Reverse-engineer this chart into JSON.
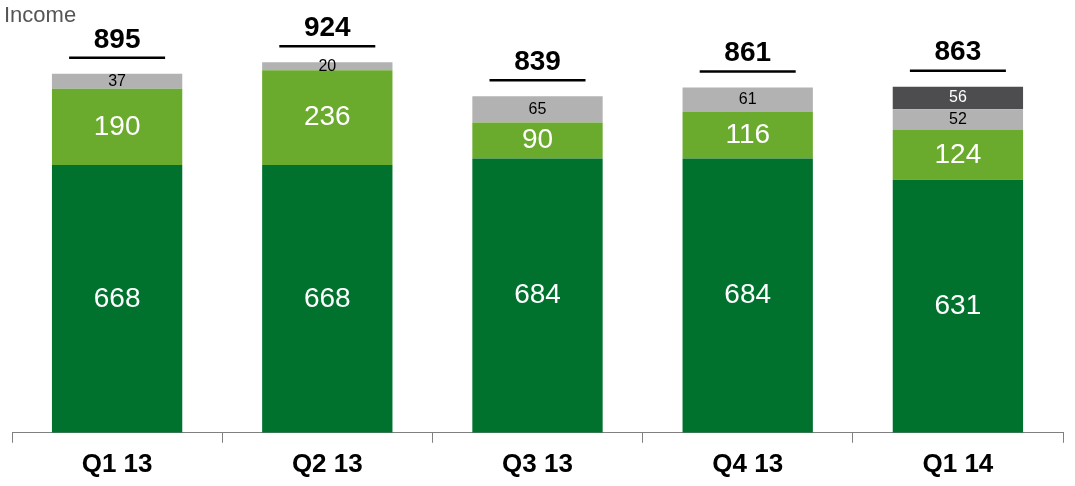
{
  "chart_data": {
    "type": "bar",
    "title": "Income",
    "stacked": true,
    "data_labels": true,
    "grid": false,
    "legend": false,
    "categories": [
      "Q1 13",
      "Q2 13",
      "Q3 13",
      "Q4 13",
      "Q1 14"
    ],
    "series": [
      {
        "color": "#00722e",
        "values": [
          668,
          668,
          684,
          684,
          631
        ]
      },
      {
        "color": "#6aab2e",
        "values": [
          190,
          236,
          90,
          116,
          124
        ]
      },
      {
        "color": "#b2b2b2",
        "values": [
          37,
          20,
          65,
          61,
          52
        ]
      },
      {
        "color": "#4d4d4f",
        "values": [
          null,
          null,
          null,
          null,
          56
        ]
      }
    ],
    "totals": [
      "895",
      "924",
      "839",
      "861",
      "863"
    ]
  }
}
